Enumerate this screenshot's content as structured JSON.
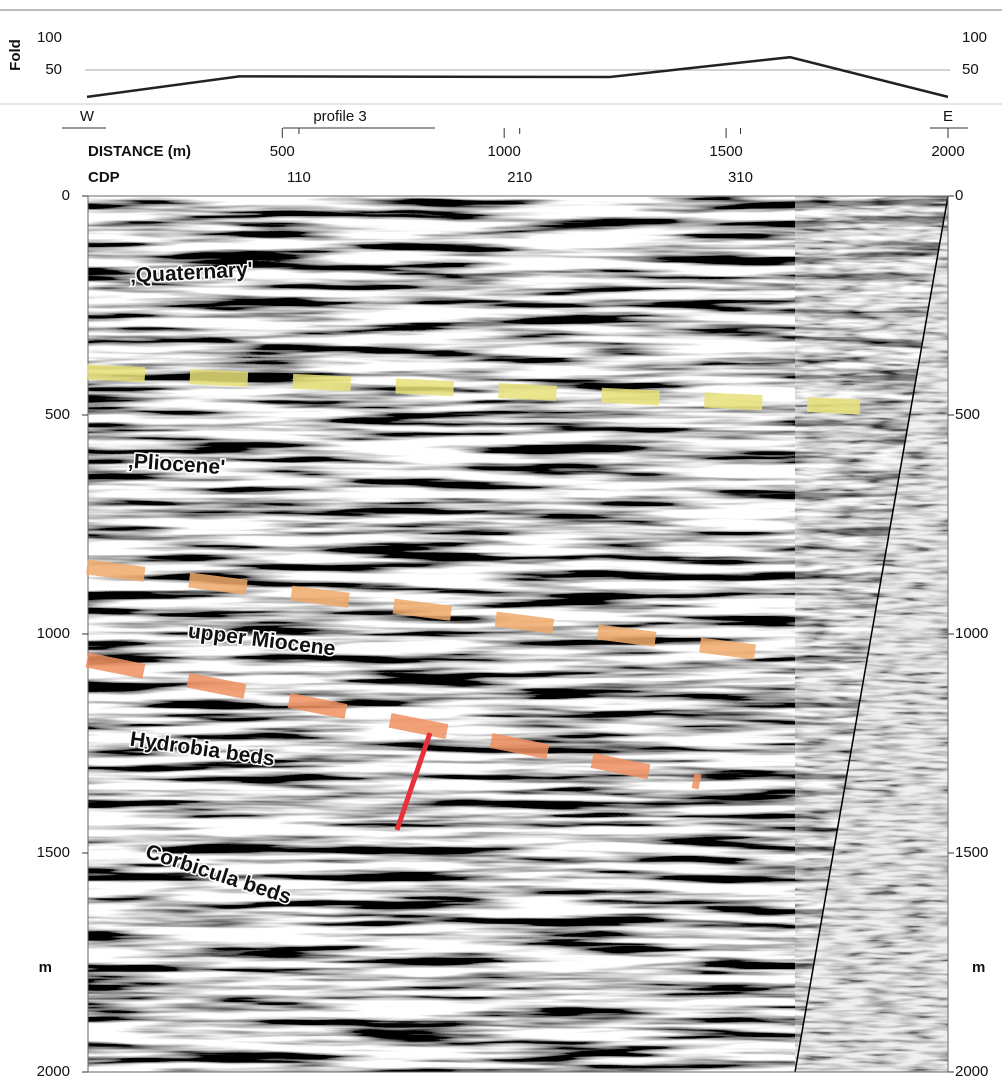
{
  "chart_data": {
    "type": "line",
    "ylabel": "Fold",
    "x": [
      60,
      403,
      1238,
      1419,
      1644,
      2000
    ],
    "values": [
      8,
      40,
      39,
      53,
      70,
      8
    ],
    "color": "#222222",
    "xlim": [
      60,
      2000
    ],
    "ylim": [
      0,
      100
    ],
    "yticks": [
      50,
      100
    ],
    "grid": true
  },
  "distance_axis": {
    "label": "DISTANCE (m)",
    "xlim": [
      60,
      2000
    ],
    "ticks": [
      500,
      1000,
      1500,
      2000
    ],
    "west": "W",
    "east": "E",
    "profile": "profile 3"
  },
  "cdp_axis": {
    "label": "CDP",
    "lim": [
      14,
      404
    ],
    "ticks": [
      110,
      210,
      310
    ]
  },
  "depth_axis": {
    "ylim": [
      0,
      2000
    ],
    "yticks": [
      0,
      500,
      1000,
      1500,
      2000
    ],
    "unit": "m"
  },
  "units": [
    "‚Quaternary'",
    "‚Pliocene'",
    "upper Miocene",
    "Hydrobia beds",
    "Corbicula beds"
  ]
}
